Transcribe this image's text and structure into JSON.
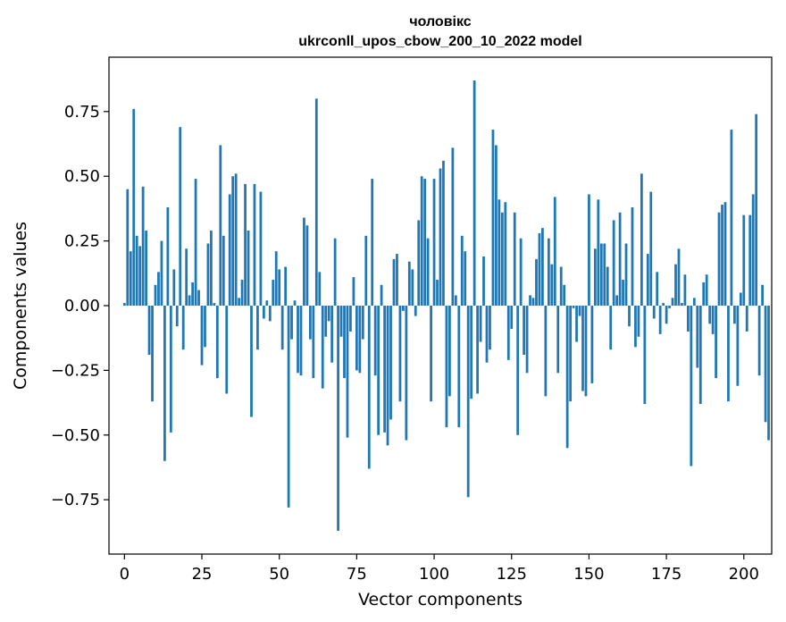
{
  "chart_data": {
    "type": "bar",
    "title": "чоловікс",
    "subtitle": "ukrconll_upos_cbow_200_10_2022 model",
    "xlabel": "Vector components",
    "ylabel": "Components values",
    "xlim": [
      -5,
      209
    ],
    "ylim": [
      -0.96,
      0.96
    ],
    "xticks": [
      0,
      25,
      50,
      75,
      100,
      125,
      150,
      175,
      200
    ],
    "xtick_labels": [
      "0",
      "25",
      "50",
      "75",
      "100",
      "125",
      "150",
      "175",
      "200"
    ],
    "yticks": [
      -0.75,
      -0.5,
      -0.25,
      0.0,
      0.25,
      0.5,
      0.75
    ],
    "ytick_labels": [
      "−0.75",
      "−0.50",
      "−0.25",
      "0.00",
      "0.25",
      "0.50",
      "0.75"
    ],
    "bar_color": "#1f77b4",
    "values": [
      0.01,
      0.45,
      0.21,
      0.76,
      0.27,
      0.23,
      0.46,
      0.29,
      -0.19,
      -0.37,
      0.08,
      0.13,
      0.25,
      -0.6,
      0.38,
      -0.49,
      0.14,
      -0.08,
      0.69,
      -0.17,
      0.22,
      0.04,
      0.09,
      0.49,
      0.06,
      -0.23,
      -0.16,
      0.24,
      0.29,
      0.01,
      -0.28,
      0.62,
      0.27,
      -0.34,
      0.43,
      0.5,
      0.51,
      0.03,
      0.1,
      0.47,
      0.29,
      -0.43,
      0.47,
      -0.17,
      0.44,
      -0.05,
      0.02,
      -0.06,
      0.1,
      0.21,
      0.14,
      -0.17,
      0.15,
      -0.78,
      -0.13,
      0.02,
      -0.26,
      -0.27,
      0.34,
      0.31,
      -0.13,
      -0.28,
      0.8,
      0.13,
      -0.32,
      -0.12,
      -0.06,
      -0.22,
      0.26,
      -0.87,
      -0.12,
      -0.28,
      -0.51,
      -0.1,
      0.11,
      -0.25,
      -0.26,
      -0.13,
      0.27,
      -0.63,
      0.49,
      -0.27,
      -0.5,
      0.08,
      -0.49,
      -0.54,
      -0.44,
      0.18,
      0.2,
      -0.37,
      -0.02,
      -0.52,
      0.17,
      0.14,
      -0.04,
      0.33,
      0.5,
      0.49,
      0.26,
      -0.37,
      0.49,
      0.1,
      0.53,
      0.56,
      -0.47,
      -0.35,
      0.61,
      0.04,
      -0.47,
      0.27,
      0.21,
      -0.74,
      -0.36,
      0.87,
      -0.34,
      -0.14,
      0.19,
      -0.22,
      -0.17,
      0.68,
      0.62,
      0.41,
      0.36,
      0.4,
      -0.21,
      -0.09,
      0.36,
      -0.5,
      0.26,
      -0.19,
      -0.26,
      0.04,
      0.03,
      0.18,
      0.28,
      0.3,
      -0.35,
      0.26,
      0.16,
      0.42,
      -0.26,
      0.15,
      0.08,
      -0.55,
      -0.37,
      -0.01,
      -0.14,
      -0.04,
      -0.33,
      -0.35,
      0.43,
      -0.3,
      0.22,
      0.41,
      0.24,
      0.24,
      0.15,
      -0.17,
      0.33,
      0.04,
      0.36,
      0.1,
      0.24,
      -0.08,
      0.38,
      -0.16,
      -0.12,
      0.51,
      -0.38,
      0.2,
      0.44,
      -0.05,
      0.13,
      -0.11,
      0.01,
      -0.07,
      -0.01,
      0.03,
      0.16,
      0.22,
      0.01,
      0.12,
      -0.1,
      -0.62,
      0.03,
      -0.24,
      -0.38,
      0.09,
      0.12,
      -0.07,
      -0.11,
      -0.28,
      0.36,
      0.39,
      0.4,
      -0.37,
      0.68,
      -0.07,
      -0.31,
      0.05,
      0.35,
      -0.1,
      0.35,
      0.43,
      0.74,
      -0.27,
      0.08,
      -0.45,
      -0.52
    ]
  }
}
